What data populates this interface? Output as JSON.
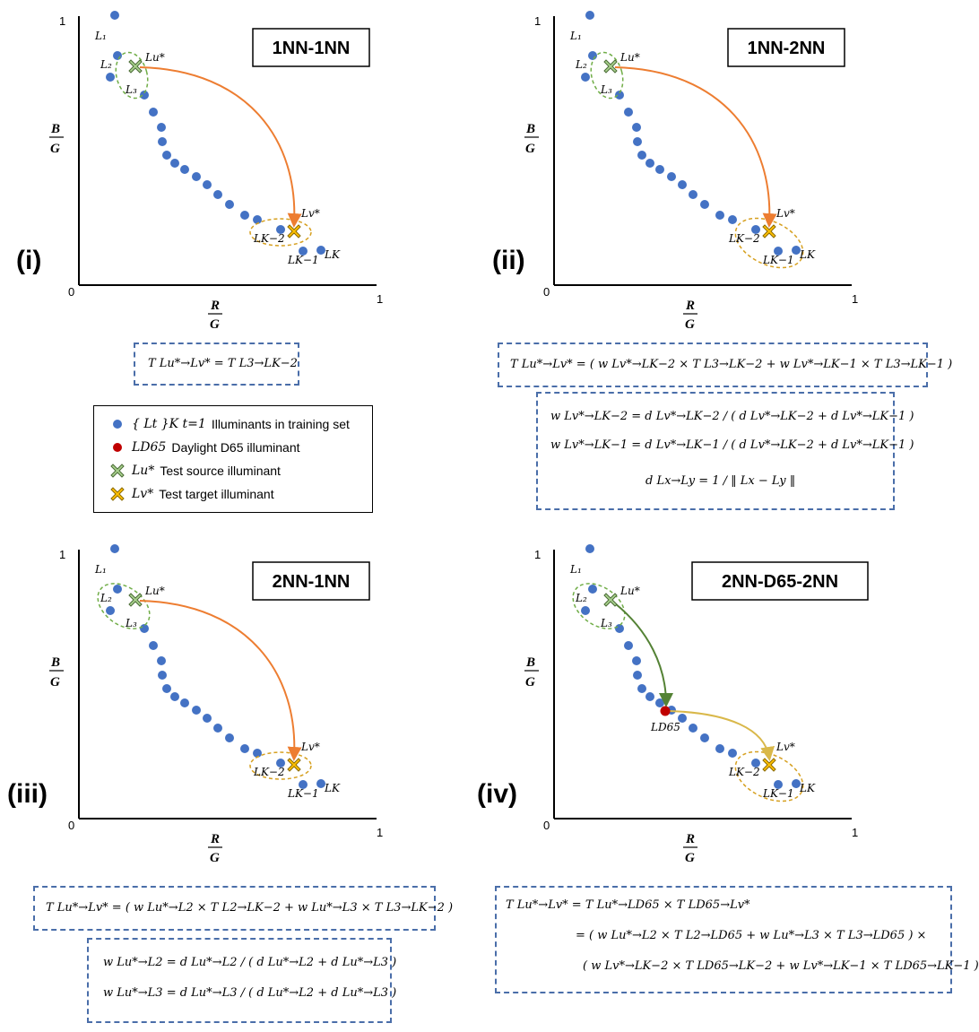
{
  "colors": {
    "point": "#4472c4",
    "d65": "#c00000",
    "source_fill": "#a9d18e",
    "target_fill": "#ffc000",
    "source_ellipse": "#70ad47",
    "target_ellipse": "#d6a020",
    "arrow_orange": "#ed7d31",
    "arrow_green": "#548235",
    "arrow_yellow": "#d9b84a",
    "formula_border": "#4a6ea9"
  },
  "axes": {
    "xlabel_num": "R",
    "xlabel_den": "G",
    "ylabel_num": "B",
    "ylabel_den": "G",
    "origin": "0",
    "xmax": "1",
    "ymax": "1"
  },
  "labels": {
    "L1": "L₁",
    "L2": "L₂",
    "L3": "L₃",
    "Lu": "Lu*",
    "Lv": "Lv*",
    "LK2": "LK−2",
    "LK1": "LK−1",
    "LK": "LK",
    "LD65": "LD65"
  },
  "panels": [
    {
      "roman": "(i)",
      "title": "1NN-1NN"
    },
    {
      "roman": "(ii)",
      "title": "1NN-2NN"
    },
    {
      "roman": "(iii)",
      "title": "2NN-1NN"
    },
    {
      "roman": "(iv)",
      "title": "2NN-D65-2NN"
    }
  ],
  "legend": {
    "items": [
      {
        "math": "{ Lt }K t=1",
        "text": "Illuminants in training set"
      },
      {
        "math": "LD65",
        "text": "Daylight D65 illuminant"
      },
      {
        "math": "Lu*",
        "text": "Test source illuminant"
      },
      {
        "math": "Lv*",
        "text": "Test target illuminant"
      }
    ]
  },
  "formulas": {
    "f1": "T Lu*→Lv* = T L3→LK−2",
    "f2": "T Lu*→Lv* = ( w Lv*→LK−2 × T L3→LK−2 + w Lv*→LK−1 × T L3→LK−1 )",
    "f2w": [
      "w Lv*→LK−2 = d Lv*→LK−2 / ( d Lv*→LK−2 + d Lv*→LK−1 )",
      "w Lv*→LK−1 = d Lv*→LK−1 / ( d Lv*→LK−2 + d Lv*→LK−1 )",
      "d Lx→Ly = 1 / ‖ Lx − Ly ‖"
    ],
    "f3": "T Lu*→Lv* = ( w Lu*→L2 × T L2→LK−2 + w Lu*→L3 × T L3→LK−2 )",
    "f3w": [
      "w Lu*→L2 = d Lu*→L2 / ( d Lu*→L2 + d Lu*→L3 )",
      "w Lu*→L3 = d Lu*→L3 / ( d Lu*→L2 + d Lu*→L3 )"
    ],
    "f4": [
      "T Lu*→Lv* = T Lu*→LD65 × T LD65→Lv*",
      "= ( w Lu*→L2 × T L2→LD65 + w Lu*→L3 × T L3→LD65 ) ×",
      "( w Lv*→LK−2 × T LD65→LK−2 + w Lv*→LK−1 × T LD65→LK−1 )"
    ]
  }
}
